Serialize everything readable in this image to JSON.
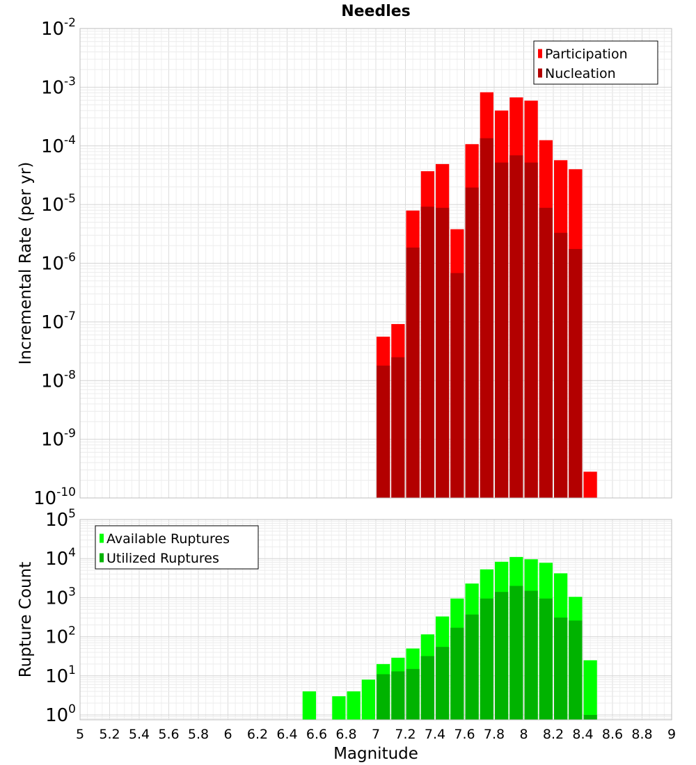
{
  "chart_data": [
    {
      "type": "bar",
      "title": "Needles",
      "xlabel": "",
      "ylabel": "Incremental Rate (per yr)",
      "yscale": "log",
      "xlim": [
        5,
        9
      ],
      "ylim": [
        1e-10,
        0.01
      ],
      "grid": true,
      "legend_position": "top-right",
      "bar_width": 0.1,
      "y_tick_exponents": [
        "-10",
        "-9",
        "-8",
        "-7",
        "-6",
        "-5",
        "-4",
        "-3",
        "-2"
      ],
      "x": [
        7.05,
        7.15,
        7.25,
        7.35,
        7.45,
        7.55,
        7.65,
        7.75,
        7.85,
        7.95,
        8.05,
        8.15,
        8.25,
        8.35,
        8.45
      ],
      "series": [
        {
          "name": "Participation",
          "color": "#ff0000",
          "values": [
            5.6e-08,
            9.2e-08,
            7.9e-06,
            3.7e-05,
            4.9e-05,
            3.8e-06,
            0.000107,
            0.00082,
            0.0004,
            0.00067,
            0.00059,
            0.000125,
            5.7e-05,
            4e-05,
            2.8e-10
          ]
        },
        {
          "name": "Nucleation",
          "color": "#b30000",
          "values": [
            1.8e-08,
            2.5e-08,
            1.85e-06,
            9.2e-06,
            8.8e-06,
            6.8e-07,
            1.95e-05,
            0.000135,
            5.2e-05,
            6.9e-05,
            5.2e-05,
            8.8e-06,
            3.3e-06,
            1.75e-06,
            null
          ]
        }
      ]
    },
    {
      "type": "bar",
      "title": "",
      "xlabel": "Magnitude",
      "ylabel": "Rupture Count",
      "yscale": "log",
      "xlim": [
        5,
        9
      ],
      "ylim": [
        0.75,
        100000
      ],
      "grid": true,
      "legend_position": "top-left",
      "bar_width": 0.1,
      "y_tick_exponents": [
        "0",
        "1",
        "2",
        "3",
        "4",
        "5"
      ],
      "x_tick_labels": [
        "5",
        "5.2",
        "5.4",
        "5.6",
        "5.8",
        "6",
        "6.2",
        "6.4",
        "6.6",
        "6.8",
        "7",
        "7.2",
        "7.4",
        "7.6",
        "7.8",
        "8",
        "8.2",
        "8.4",
        "8.6",
        "8.8",
        "9"
      ],
      "x": [
        6.55,
        6.75,
        6.85,
        6.95,
        7.05,
        7.15,
        7.25,
        7.35,
        7.45,
        7.55,
        7.65,
        7.75,
        7.85,
        7.95,
        8.05,
        8.15,
        8.25,
        8.35,
        8.45
      ],
      "series": [
        {
          "name": "Available Ruptures",
          "color": "#00ff00",
          "values": [
            4,
            3,
            4,
            8,
            20,
            29,
            50,
            115,
            330,
            950,
            2300,
            5300,
            8300,
            11000,
            9600,
            7800,
            4200,
            1050,
            25
          ]
        },
        {
          "name": "Utilized Ruptures",
          "color": "#00b300",
          "values": [
            null,
            null,
            null,
            null,
            11,
            13,
            15,
            32,
            55,
            170,
            370,
            950,
            1400,
            2000,
            1500,
            950,
            310,
            260,
            1
          ]
        }
      ]
    }
  ]
}
